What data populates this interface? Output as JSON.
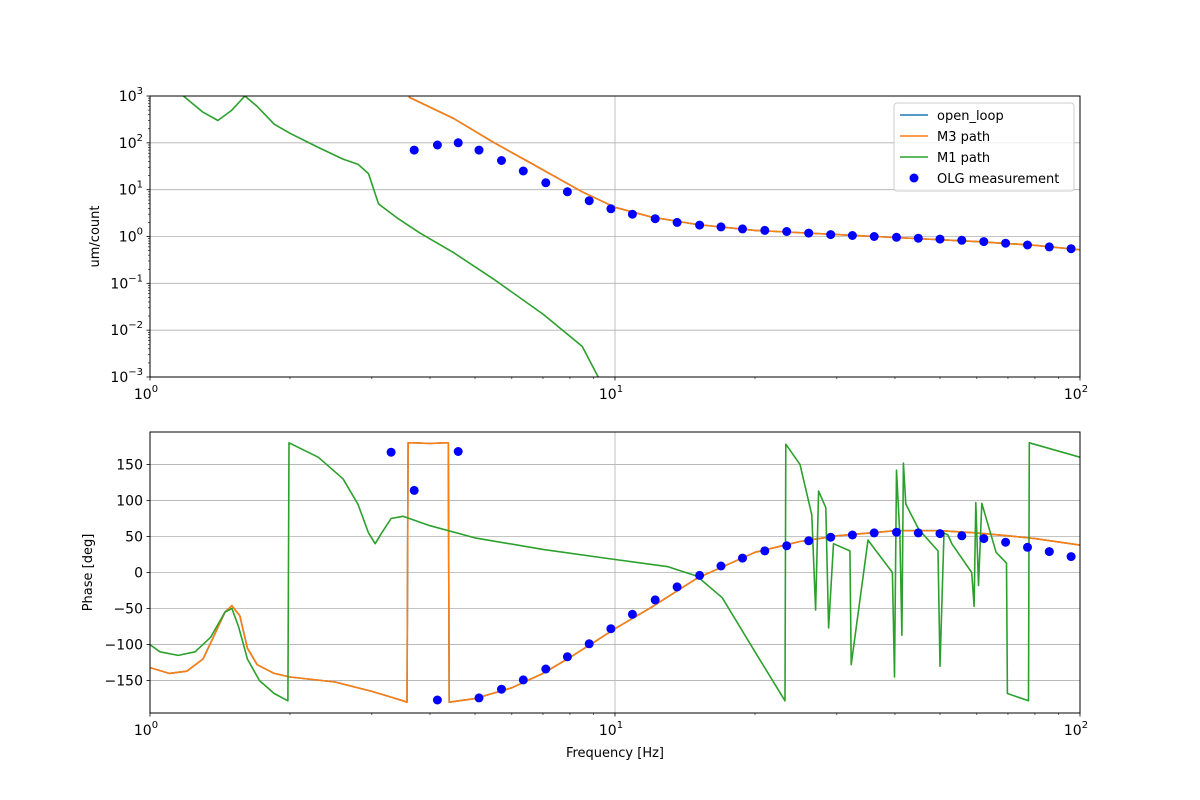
{
  "chart_data": [
    {
      "type": "line",
      "xscale": "log",
      "yscale": "log",
      "xlim": [
        1,
        100
      ],
      "ylim": [
        0.001,
        1000
      ],
      "xlabel": "",
      "ylabel": "um/count",
      "grid": true,
      "legend_position": "top-right",
      "xticks": [
        1,
        10,
        100
      ],
      "xtick_labels": [
        [
          "10",
          "0"
        ],
        [
          "10",
          "1"
        ],
        [
          "10",
          "2"
        ]
      ],
      "yticks": [
        0.001,
        0.01,
        0.1,
        1,
        10,
        100,
        1000
      ],
      "ytick_labels": [
        [
          "10",
          "−3"
        ],
        [
          "10",
          "−2"
        ],
        [
          "10",
          "−1"
        ],
        [
          "10",
          "0"
        ],
        [
          "10",
          "1"
        ],
        [
          "10",
          "2"
        ],
        [
          "10",
          "3"
        ]
      ],
      "series": [
        {
          "name": "open_loop",
          "kind": "line",
          "color": "#1f77b4",
          "x": [
            3.6,
            4.5,
            5.5,
            6.5,
            7.5,
            8.5,
            10,
            12,
            15,
            20,
            30,
            40,
            60,
            80,
            100
          ],
          "y": [
            950,
            330,
            100,
            40,
            18,
            9,
            4.2,
            2.6,
            1.8,
            1.35,
            1.1,
            0.95,
            0.78,
            0.65,
            0.52
          ]
        },
        {
          "name": "M3 path",
          "kind": "line",
          "color": "#ff7f0e",
          "x": [
            3.6,
            4.5,
            5.5,
            6.5,
            7.5,
            8.5,
            10,
            12,
            15,
            20,
            30,
            40,
            60,
            80,
            100
          ],
          "y": [
            950,
            330,
            100,
            40,
            18,
            9,
            4.2,
            2.6,
            1.8,
            1.35,
            1.1,
            0.95,
            0.78,
            0.65,
            0.52
          ]
        },
        {
          "name": "M1 path",
          "kind": "line",
          "color": "#2ca02c",
          "x": [
            1.18,
            1.3,
            1.4,
            1.5,
            1.6,
            1.7,
            1.85,
            2.0,
            2.3,
            2.6,
            2.8,
            2.95,
            3.1,
            3.4,
            3.8,
            4.5,
            5.5,
            7,
            8.5,
            9.2
          ],
          "y": [
            1000,
            450,
            300,
            500,
            1000,
            600,
            250,
            160,
            80,
            45,
            35,
            22,
            5,
            2.5,
            1.2,
            0.45,
            0.12,
            0.022,
            0.0045,
            0.001
          ]
        },
        {
          "name": "OLG measurement",
          "kind": "scatter",
          "color": "#0000ff",
          "x": [
            3.7,
            4.15,
            4.6,
            5.1,
            5.7,
            6.35,
            7.1,
            7.9,
            8.8,
            9.8,
            10.9,
            12.2,
            13.6,
            15.2,
            16.9,
            18.8,
            21.0,
            23.4,
            26.1,
            29.1,
            32.4,
            36.1,
            40.3,
            44.9,
            50.0,
            55.7,
            62.1,
            69.2,
            77.1,
            85.9,
            95.7
          ],
          "y": [
            70,
            90,
            100,
            70,
            42,
            25,
            14,
            9,
            5.8,
            3.9,
            3.0,
            2.4,
            2.0,
            1.75,
            1.6,
            1.45,
            1.35,
            1.28,
            1.18,
            1.1,
            1.05,
            1.0,
            0.96,
            0.92,
            0.88,
            0.83,
            0.78,
            0.72,
            0.66,
            0.6,
            0.55
          ]
        }
      ]
    },
    {
      "type": "line",
      "xscale": "log",
      "yscale": "linear",
      "xlim": [
        1,
        100
      ],
      "ylim": [
        -195,
        195
      ],
      "xlabel": "Frequency [Hz]",
      "ylabel": "Phase [deg]",
      "grid": true,
      "xticks": [
        1,
        10,
        100
      ],
      "xtick_labels": [
        [
          "10",
          "0"
        ],
        [
          "10",
          "1"
        ],
        [
          "10",
          "2"
        ]
      ],
      "yticks": [
        -150,
        -100,
        -50,
        0,
        50,
        100,
        150
      ],
      "ytick_labels": [
        [
          "−150"
        ],
        [
          "−100"
        ],
        [
          "−50"
        ],
        [
          "0"
        ],
        [
          "50"
        ],
        [
          "100"
        ],
        [
          "150"
        ]
      ],
      "series": [
        {
          "name": "open_loop",
          "kind": "line",
          "color": "#1f77b4",
          "x": [
            1.0,
            1.1,
            1.2,
            1.3,
            1.38,
            1.45,
            1.5,
            1.56,
            1.62,
            1.7,
            1.85,
            2.0,
            2.5,
            3.0,
            3.3,
            3.5,
            3.57,
            3.59,
            3.7,
            4.0,
            4.3,
            4.38,
            4.4,
            5,
            6,
            7,
            8,
            9,
            10,
            12,
            15,
            20,
            25,
            30,
            40,
            50,
            60,
            70,
            80,
            100
          ],
          "y": [
            -132,
            -140,
            -137,
            -120,
            -85,
            -55,
            -46,
            -60,
            -105,
            -128,
            -140,
            -145,
            -152,
            -165,
            -173,
            -178,
            -180,
            180,
            180,
            179,
            180,
            180,
            -180,
            -175,
            -160,
            -140,
            -118,
            -97,
            -78,
            -48,
            -8,
            28,
            43,
            51,
            58,
            58,
            55,
            51,
            47,
            38
          ]
        },
        {
          "name": "M3 path",
          "kind": "line",
          "color": "#ff7f0e",
          "x": [
            1.0,
            1.1,
            1.2,
            1.3,
            1.38,
            1.45,
            1.5,
            1.56,
            1.62,
            1.7,
            1.85,
            2.0,
            2.5,
            3.0,
            3.3,
            3.5,
            3.57,
            3.59,
            3.7,
            4.0,
            4.3,
            4.38,
            4.4,
            5,
            6,
            7,
            8,
            9,
            10,
            12,
            15,
            20,
            25,
            30,
            40,
            50,
            60,
            70,
            80,
            100
          ],
          "y": [
            -132,
            -140,
            -137,
            -120,
            -85,
            -55,
            -46,
            -60,
            -105,
            -128,
            -140,
            -145,
            -152,
            -165,
            -173,
            -178,
            -180,
            180,
            180,
            179,
            180,
            180,
            -180,
            -175,
            -160,
            -140,
            -118,
            -97,
            -78,
            -48,
            -8,
            28,
            43,
            51,
            58,
            58,
            55,
            51,
            47,
            38
          ]
        },
        {
          "name": "M1 path",
          "kind": "line",
          "color": "#2ca02c",
          "x": [
            1.0,
            1.05,
            1.15,
            1.25,
            1.35,
            1.45,
            1.5,
            1.55,
            1.62,
            1.72,
            1.85,
            1.98,
            1.99,
            2.3,
            2.6,
            2.8,
            2.95,
            3.05,
            3.15,
            3.3,
            3.5,
            4.0,
            5.0,
            7.0,
            10,
            13,
            15,
            17,
            20,
            23.2,
            23.3,
            25,
            26.5,
            27,
            27.4,
            28.4,
            28.8,
            29.5,
            32,
            32.2,
            35,
            39.5,
            39.9,
            40.3,
            41,
            41.4,
            41.7,
            42.2,
            45,
            49.5,
            50,
            51,
            52,
            53,
            58.5,
            59.2,
            59.7,
            60.5,
            61.5,
            66,
            69.5,
            69.8,
            77.5,
            77.8,
            100
          ],
          "y": [
            -100,
            -110,
            -115,
            -110,
            -90,
            -55,
            -50,
            -75,
            -120,
            -150,
            -168,
            -178,
            180,
            160,
            130,
            95,
            55,
            40,
            55,
            75,
            78,
            65,
            48,
            32,
            18,
            8,
            -5,
            -35,
            -110,
            -178,
            178,
            150,
            80,
            -52,
            113,
            90,
            -77,
            40,
            30,
            -128,
            45,
            0,
            -145,
            142,
            50,
            -87,
            152,
            95,
            60,
            30,
            -130,
            55,
            52,
            40,
            0,
            -47,
            97,
            -18,
            96,
            28,
            13,
            -168,
            -178,
            180,
            160
          ]
        },
        {
          "name": "OLG measurement",
          "kind": "scatter",
          "color": "#0000ff",
          "x": [
            3.3,
            3.7,
            4.15,
            4.6,
            5.1,
            5.7,
            6.35,
            7.1,
            7.9,
            8.8,
            9.8,
            10.9,
            12.2,
            13.6,
            15.2,
            16.9,
            18.8,
            21.0,
            23.4,
            26.1,
            29.1,
            32.4,
            36.1,
            40.3,
            44.9,
            50.0,
            55.7,
            62.1,
            69.2,
            77.1,
            85.9,
            95.7
          ],
          "y": [
            167,
            114,
            -177,
            168,
            -174,
            -162,
            -149,
            -134,
            -117,
            -99,
            -78,
            -58,
            -38,
            -20,
            -4,
            9,
            20,
            30,
            37,
            44,
            49,
            52,
            55,
            56,
            55,
            54,
            51,
            47,
            42,
            35,
            29,
            22
          ]
        }
      ]
    }
  ],
  "legend": {
    "entries": [
      {
        "label": "open_loop",
        "kind": "line",
        "color": "#1f77b4"
      },
      {
        "label": "M3 path",
        "kind": "line",
        "color": "#ff7f0e"
      },
      {
        "label": "M1 path",
        "kind": "line",
        "color": "#2ca02c"
      },
      {
        "label": "OLG measurement",
        "kind": "marker",
        "color": "#0000ff"
      }
    ]
  }
}
